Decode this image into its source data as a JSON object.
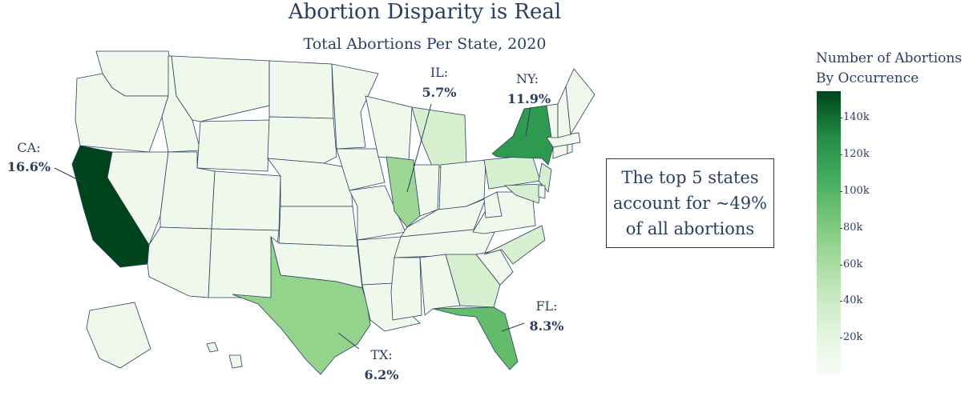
{
  "chart_data": {
    "type": "choropleth",
    "title": "Abortion Disparity is Real",
    "subtitle": "Total Abortions Per State, 2020",
    "colorscale": "Greens",
    "colorbar": {
      "title_line1": "Number of Abortions",
      "title_line2": "By Occurrence",
      "ticks": [
        "20k",
        "40k",
        "60k",
        "80k",
        "100k",
        "120k",
        "140k"
      ],
      "tick_values": [
        20000,
        40000,
        60000,
        80000,
        100000,
        120000,
        140000
      ],
      "range": [
        0,
        155000
      ]
    },
    "annotations": [
      {
        "state": "CA:",
        "share": "16.6%"
      },
      {
        "state": "IL:",
        "share": "5.7%"
      },
      {
        "state": "NY:",
        "share": "11.9%"
      },
      {
        "state": "FL:",
        "share": "8.3%"
      },
      {
        "state": "TX:",
        "share": "6.2%"
      }
    ],
    "callout_lines": [
      "The top 5 states",
      "account for ~49%",
      "of all abortions"
    ],
    "highlight_colors": {
      "CA": "#00441b",
      "NY": "#2e9a50",
      "FL": "#63bb6c",
      "TX": "#93d38b",
      "IL": "#9dd594",
      "light": "#eff8ea",
      "mid": "#d6efcf"
    }
  }
}
